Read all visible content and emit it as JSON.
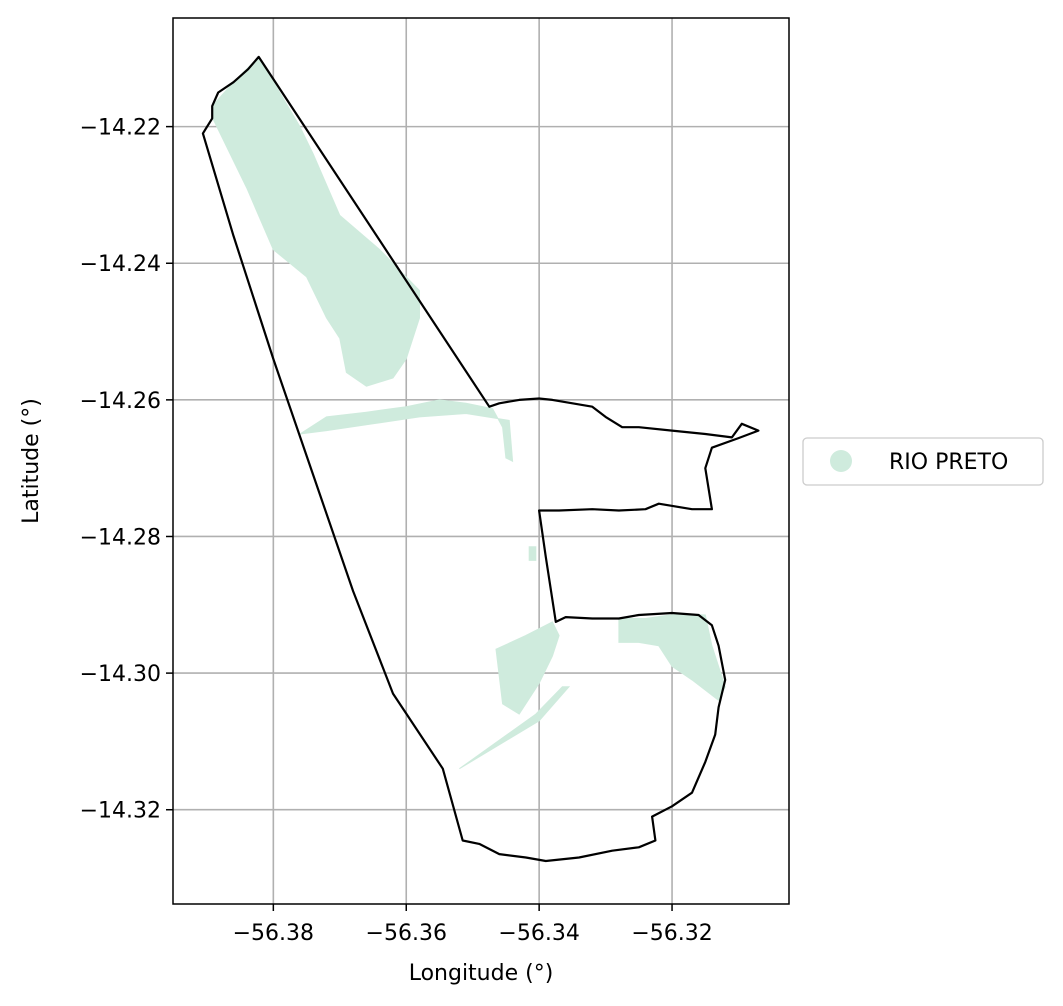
{
  "chart_data": {
    "type": "map",
    "xlabel": "Longitude (°)",
    "ylabel": "Latitude (°)",
    "xlim": [
      -56.3951,
      -56.3024
    ],
    "ylim": [
      -14.3338,
      -14.2041
    ],
    "grid": true,
    "x_ticks": [
      -56.38,
      -56.36,
      -56.34,
      -56.32
    ],
    "x_tick_labels": [
      "−56.38",
      "−56.36",
      "−56.34",
      "−56.32"
    ],
    "y_ticks": [
      -14.22,
      -14.24,
      -14.26,
      -14.28,
      -14.3,
      -14.32
    ],
    "y_tick_labels": [
      "−14.22",
      "−14.24",
      "−14.26",
      "−14.28",
      "−14.30",
      "−14.32"
    ],
    "legend": {
      "placement": "right",
      "entries": [
        {
          "label": "RIO PRETO",
          "color": "#cfebdd"
        }
      ]
    },
    "boundary": [
      [
        -56.3822,
        -14.2098
      ],
      [
        -56.3838,
        -14.2116
      ],
      [
        -56.386,
        -14.2135
      ],
      [
        -56.3883,
        -14.215
      ],
      [
        -56.3892,
        -14.217
      ],
      [
        -56.3892,
        -14.2188
      ],
      [
        -56.3906,
        -14.221
      ],
      [
        -56.386,
        -14.236
      ],
      [
        -56.38,
        -14.254
      ],
      [
        -56.374,
        -14.271
      ],
      [
        -56.368,
        -14.288
      ],
      [
        -56.362,
        -14.303
      ],
      [
        -56.3545,
        -14.314
      ],
      [
        -56.3515,
        -14.3245
      ],
      [
        -56.349,
        -14.325
      ],
      [
        -56.346,
        -14.3265
      ],
      [
        -56.342,
        -14.327
      ],
      [
        -56.339,
        -14.3275
      ],
      [
        -56.334,
        -14.327
      ],
      [
        -56.329,
        -14.326
      ],
      [
        -56.325,
        -14.3255
      ],
      [
        -56.3225,
        -14.3245
      ],
      [
        -56.323,
        -14.321
      ],
      [
        -56.32,
        -14.3195
      ],
      [
        -56.317,
        -14.3175
      ],
      [
        -56.315,
        -14.313
      ],
      [
        -56.3135,
        -14.309
      ],
      [
        -56.313,
        -14.305
      ],
      [
        -56.312,
        -14.301
      ],
      [
        -56.313,
        -14.296
      ],
      [
        -56.314,
        -14.293
      ],
      [
        -56.316,
        -14.2915
      ],
      [
        -56.32,
        -14.2912
      ],
      [
        -56.325,
        -14.2915
      ],
      [
        -56.328,
        -14.292
      ],
      [
        -56.332,
        -14.292
      ],
      [
        -56.336,
        -14.2918
      ],
      [
        -56.3375,
        -14.2925
      ],
      [
        -56.339,
        -14.283
      ],
      [
        -56.34,
        -14.2762
      ],
      [
        -56.337,
        -14.2762
      ],
      [
        -56.332,
        -14.276
      ],
      [
        -56.328,
        -14.2762
      ],
      [
        -56.324,
        -14.276
      ],
      [
        -56.322,
        -14.2752
      ],
      [
        -56.317,
        -14.276
      ],
      [
        -56.314,
        -14.276
      ],
      [
        -56.315,
        -14.27
      ],
      [
        -56.314,
        -14.267
      ],
      [
        -56.31,
        -14.2656
      ],
      [
        -56.307,
        -14.2645
      ],
      [
        -56.3095,
        -14.2635
      ],
      [
        -56.311,
        -14.2655
      ],
      [
        -56.315,
        -14.265
      ],
      [
        -56.32,
        -14.2645
      ],
      [
        -56.325,
        -14.264
      ],
      [
        -56.3275,
        -14.264
      ],
      [
        -56.33,
        -14.2625
      ],
      [
        -56.332,
        -14.261
      ],
      [
        -56.335,
        -14.2605
      ],
      [
        -56.338,
        -14.26
      ],
      [
        -56.34,
        -14.2598
      ],
      [
        -56.343,
        -14.26
      ],
      [
        -56.346,
        -14.2605
      ],
      [
        -56.3475,
        -14.261
      ],
      [
        -56.3822,
        -14.2098
      ]
    ],
    "regions": [
      {
        "name": "RIO PRETO",
        "color": "#cfebdd",
        "polygons": [
          [
            [
              -56.3822,
              -14.2098
            ],
            [
              -56.386,
              -14.2135
            ],
            [
              -56.3892,
              -14.217
            ],
            [
              -56.389,
              -14.219
            ],
            [
              -56.384,
              -14.229
            ],
            [
              -56.38,
              -14.238
            ],
            [
              -56.375,
              -14.242
            ],
            [
              -56.372,
              -14.248
            ],
            [
              -56.37,
              -14.251
            ],
            [
              -56.369,
              -14.256
            ],
            [
              -56.366,
              -14.258
            ],
            [
              -56.362,
              -14.2568
            ],
            [
              -56.36,
              -14.254
            ],
            [
              -56.358,
              -14.248
            ],
            [
              -56.358,
              -14.244
            ],
            [
              -56.364,
              -14.238
            ],
            [
              -56.37,
              -14.233
            ],
            [
              -56.374,
              -14.224
            ],
            [
              -56.376,
              -14.22
            ],
            [
              -56.3822,
              -14.2098
            ]
          ],
          [
            [
              -56.376,
              -14.265
            ],
            [
              -56.372,
              -14.2625
            ],
            [
              -56.366,
              -14.2618
            ],
            [
              -56.36,
              -14.261
            ],
            [
              -56.355,
              -14.26
            ],
            [
              -56.351,
              -14.2605
            ],
            [
              -56.347,
              -14.2613
            ],
            [
              -56.3455,
              -14.264
            ],
            [
              -56.345,
              -14.2685
            ],
            [
              -56.344,
              -14.269
            ],
            [
              -56.3445,
              -14.263
            ],
            [
              -56.351,
              -14.262
            ],
            [
              -56.358,
              -14.2625
            ],
            [
              -56.365,
              -14.2635
            ],
            [
              -56.372,
              -14.2645
            ],
            [
              -56.376,
              -14.265
            ]
          ],
          [
            [
              -56.3465,
              -14.2965
            ],
            [
              -56.342,
              -14.2945
            ],
            [
              -56.338,
              -14.2925
            ],
            [
              -56.337,
              -14.2945
            ],
            [
              -56.338,
              -14.2975
            ],
            [
              -56.34,
              -14.3015
            ],
            [
              -56.343,
              -14.306
            ],
            [
              -56.3455,
              -14.3045
            ],
            [
              -56.3465,
              -14.2965
            ]
          ],
          [
            [
              -56.352,
              -14.314
            ],
            [
              -56.34,
              -14.307
            ],
            [
              -56.3355,
              -14.302
            ],
            [
              -56.3365,
              -14.302
            ],
            [
              -56.3405,
              -14.306
            ],
            [
              -56.352,
              -14.314
            ]
          ],
          [
            [
              -56.328,
              -14.292
            ],
            [
              -56.324,
              -14.292
            ],
            [
              -56.319,
              -14.2913
            ],
            [
              -56.315,
              -14.2915
            ],
            [
              -56.314,
              -14.296
            ],
            [
              -56.312,
              -14.302
            ],
            [
              -56.313,
              -14.304
            ],
            [
              -56.317,
              -14.301
            ],
            [
              -56.32,
              -14.299
            ],
            [
              -56.322,
              -14.296
            ],
            [
              -56.325,
              -14.2955
            ],
            [
              -56.328,
              -14.2955
            ],
            [
              -56.328,
              -14.292
            ]
          ],
          [
            [
              -56.3415,
              -14.2815
            ],
            [
              -56.3405,
              -14.2815
            ],
            [
              -56.3405,
              -14.2835
            ],
            [
              -56.3415,
              -14.2835
            ],
            [
              -56.3415,
              -14.2815
            ]
          ]
        ]
      }
    ]
  }
}
